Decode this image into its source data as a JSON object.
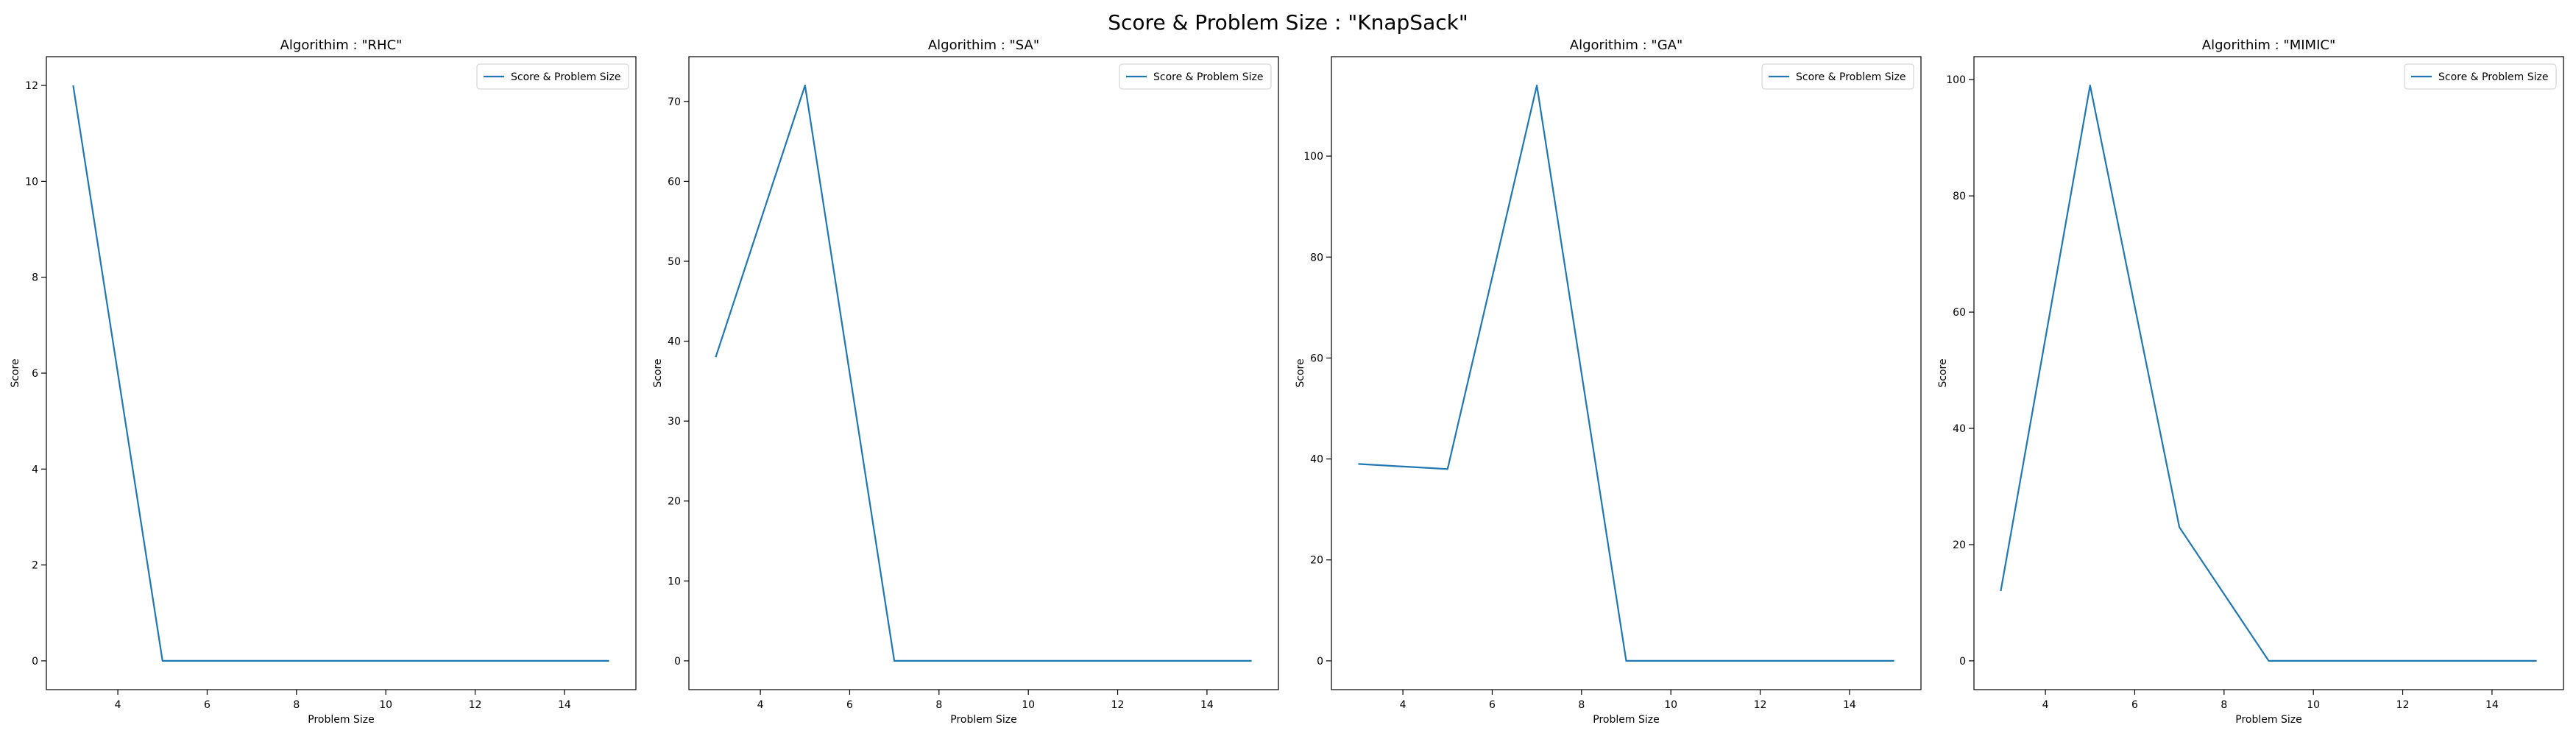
{
  "suptitle": "Score & Problem Size : \"KnapSack\"",
  "line_color": "#1f77b4",
  "chart_data": [
    {
      "type": "line",
      "title": "Algorithim : \"RHC\"",
      "xlabel": "Problem Size",
      "ylabel": "Score",
      "x": [
        3,
        5,
        7,
        9,
        11,
        13,
        15
      ],
      "series": [
        {
          "name": "Score & Problem Size",
          "values": [
            12,
            0,
            0,
            0,
            0,
            0,
            0
          ]
        }
      ],
      "xlim": [
        2.4,
        15.6
      ],
      "ylim": [
        -0.6,
        12.6
      ],
      "xticks": [
        4,
        6,
        8,
        10,
        12,
        14
      ],
      "yticks": [
        0,
        2,
        4,
        6,
        8,
        10,
        12
      ],
      "legend": "upper right",
      "grid": false
    },
    {
      "type": "line",
      "title": "Algorithim : \"SA\"",
      "xlabel": "Problem Size",
      "ylabel": "Score",
      "x": [
        3,
        5,
        7,
        9,
        11,
        13,
        15
      ],
      "series": [
        {
          "name": "Score & Problem Size",
          "values": [
            38,
            72,
            0,
            0,
            0,
            0,
            0
          ]
        }
      ],
      "xlim": [
        2.4,
        15.6
      ],
      "ylim": [
        -3.6,
        75.6
      ],
      "xticks": [
        4,
        6,
        8,
        10,
        12,
        14
      ],
      "yticks": [
        0,
        10,
        20,
        30,
        40,
        50,
        60,
        70
      ],
      "legend": "upper right",
      "grid": false
    },
    {
      "type": "line",
      "title": "Algorithim : \"GA\"",
      "xlabel": "Problem Size",
      "ylabel": "Score",
      "x": [
        3,
        5,
        7,
        9,
        11,
        13,
        15
      ],
      "series": [
        {
          "name": "Score & Problem Size",
          "values": [
            39,
            38,
            114,
            0,
            0,
            0,
            0
          ]
        }
      ],
      "xlim": [
        2.4,
        15.6
      ],
      "ylim": [
        -5.7,
        119.7
      ],
      "xticks": [
        4,
        6,
        8,
        10,
        12,
        14
      ],
      "yticks": [
        0,
        20,
        40,
        60,
        80,
        100
      ],
      "legend": "upper right",
      "grid": false
    },
    {
      "type": "line",
      "title": "Algorithim : \"MIMIC\"",
      "xlabel": "Problem Size",
      "ylabel": "Score",
      "x": [
        3,
        5,
        7,
        9,
        11,
        13,
        15
      ],
      "series": [
        {
          "name": "Score & Problem Size",
          "values": [
            12,
            99,
            23,
            0,
            0,
            0,
            0
          ]
        }
      ],
      "xlim": [
        2.4,
        15.6
      ],
      "ylim": [
        -4.95,
        103.95
      ],
      "xticks": [
        4,
        6,
        8,
        10,
        12,
        14
      ],
      "yticks": [
        0,
        20,
        40,
        60,
        80,
        100
      ],
      "legend": "upper right",
      "grid": false
    }
  ]
}
